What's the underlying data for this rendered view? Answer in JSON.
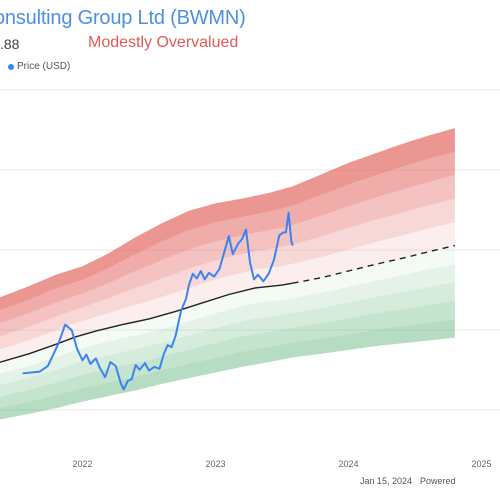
{
  "header": {
    "title": "onsulting Group Ltd (BWMN)",
    "price_fragment": ".88",
    "valuation_label": "Modestly Overvalued",
    "legend_label": "Price (USD)"
  },
  "footer": {
    "date_label": "Jan 15, 2024",
    "powered_fragment": "Powered"
  },
  "colors": {
    "price_line": "#3b82f6",
    "fair_value_line": "#222222",
    "overvalued_band": "#e0564f",
    "undervalued_band": "#3fa55b",
    "title": "#4d8fe0",
    "valuation_text": "#e05a57"
  },
  "chart_data": {
    "type": "line",
    "title": "onsulting Group Ltd (BWMN)",
    "x_tick_labels": [
      "2022",
      "2023",
      "2024",
      "2025"
    ],
    "y_grid": true,
    "legend_position": "top-left",
    "series": [
      {
        "name": "Price (USD)",
        "points": [
          [
            2021.55,
            10.6
          ],
          [
            2021.68,
            10.8
          ],
          [
            2021.74,
            11.4
          ],
          [
            2021.82,
            13.8
          ],
          [
            2021.87,
            15.8
          ],
          [
            2021.92,
            15.2
          ],
          [
            2021.96,
            13.2
          ],
          [
            2022.0,
            12.0
          ],
          [
            2022.03,
            12.6
          ],
          [
            2022.06,
            11.6
          ],
          [
            2022.1,
            12.2
          ],
          [
            2022.13,
            11.2
          ],
          [
            2022.17,
            10.2
          ],
          [
            2022.21,
            11.8
          ],
          [
            2022.25,
            11.4
          ],
          [
            2022.29,
            9.5
          ],
          [
            2022.31,
            8.9
          ],
          [
            2022.34,
            9.8
          ],
          [
            2022.37,
            10.0
          ],
          [
            2022.4,
            11.5
          ],
          [
            2022.43,
            11.0
          ],
          [
            2022.47,
            11.7
          ],
          [
            2022.5,
            10.9
          ],
          [
            2022.54,
            11.3
          ],
          [
            2022.58,
            11.1
          ],
          [
            2022.61,
            12.6
          ],
          [
            2022.64,
            13.6
          ],
          [
            2022.67,
            13.4
          ],
          [
            2022.7,
            14.6
          ],
          [
            2022.74,
            17.2
          ],
          [
            2022.78,
            18.6
          ],
          [
            2022.8,
            20.0
          ],
          [
            2022.83,
            21.2
          ],
          [
            2022.86,
            20.7
          ],
          [
            2022.89,
            21.5
          ],
          [
            2022.92,
            20.6
          ],
          [
            2022.95,
            21.3
          ],
          [
            2022.99,
            20.9
          ],
          [
            2023.03,
            21.7
          ],
          [
            2023.07,
            23.7
          ],
          [
            2023.1,
            25.2
          ],
          [
            2023.13,
            23.3
          ],
          [
            2023.17,
            24.4
          ],
          [
            2023.2,
            24.9
          ],
          [
            2023.23,
            25.9
          ],
          [
            2023.26,
            22.4
          ],
          [
            2023.29,
            20.6
          ],
          [
            2023.32,
            21.1
          ],
          [
            2023.36,
            20.4
          ],
          [
            2023.4,
            21.2
          ],
          [
            2023.44,
            22.7
          ],
          [
            2023.48,
            25.3
          ],
          [
            2023.51,
            25.6
          ],
          [
            2023.53,
            25.6
          ],
          [
            2023.55,
            27.7
          ],
          [
            2023.57,
            24.7
          ],
          [
            2023.58,
            24.2
          ]
        ]
      },
      {
        "name": "fair value",
        "points": [
          [
            2021.38,
            11.8
          ],
          [
            2021.6,
            12.7
          ],
          [
            2021.8,
            13.7
          ],
          [
            2021.95,
            14.5
          ],
          [
            2022.1,
            15.1
          ],
          [
            2022.3,
            15.8
          ],
          [
            2022.5,
            16.4
          ],
          [
            2022.7,
            17.2
          ],
          [
            2022.9,
            18.1
          ],
          [
            2023.1,
            19.0
          ],
          [
            2023.3,
            19.7
          ],
          [
            2023.5,
            20.0
          ],
          [
            2023.58,
            20.2
          ]
        ]
      },
      {
        "name": "fair value (projected)",
        "points": [
          [
            2023.58,
            20.2
          ],
          [
            2023.8,
            20.8
          ],
          [
            2024.0,
            21.5
          ],
          [
            2024.2,
            22.2
          ],
          [
            2024.42,
            22.9
          ],
          [
            2024.62,
            23.6
          ],
          [
            2024.8,
            24.2
          ]
        ]
      }
    ],
    "bands": [
      {
        "name": "overvalued range",
        "color": "#e0564f",
        "upper": [
          [
            2021.38,
            18.7
          ],
          [
            2021.6,
            19.9
          ],
          [
            2021.8,
            21.1
          ],
          [
            2022.0,
            22.0
          ],
          [
            2022.2,
            23.4
          ],
          [
            2022.4,
            25.1
          ],
          [
            2022.6,
            26.6
          ],
          [
            2022.8,
            27.9
          ],
          [
            2023.0,
            28.7
          ],
          [
            2023.2,
            29.2
          ],
          [
            2023.4,
            29.8
          ],
          [
            2023.58,
            30.5
          ],
          [
            2023.8,
            31.8
          ],
          [
            2024.0,
            33.0
          ],
          [
            2024.2,
            34.0
          ],
          [
            2024.4,
            35.0
          ],
          [
            2024.6,
            35.9
          ],
          [
            2024.8,
            36.7
          ]
        ]
      },
      {
        "name": "undervalued range",
        "color": "#3fa55b",
        "lower": [
          [
            2021.38,
            5.7
          ],
          [
            2021.6,
            6.3
          ],
          [
            2021.8,
            6.9
          ],
          [
            2022.0,
            7.6
          ],
          [
            2022.2,
            8.2
          ],
          [
            2022.4,
            8.8
          ],
          [
            2022.6,
            9.5
          ],
          [
            2022.8,
            10.1
          ],
          [
            2023.0,
            10.7
          ],
          [
            2023.2,
            11.3
          ],
          [
            2023.4,
            11.8
          ],
          [
            2023.58,
            12.3
          ],
          [
            2023.8,
            12.7
          ],
          [
            2024.0,
            13.1
          ],
          [
            2024.2,
            13.5
          ],
          [
            2024.4,
            13.8
          ],
          [
            2024.6,
            14.1
          ],
          [
            2024.8,
            14.4
          ]
        ]
      }
    ]
  }
}
